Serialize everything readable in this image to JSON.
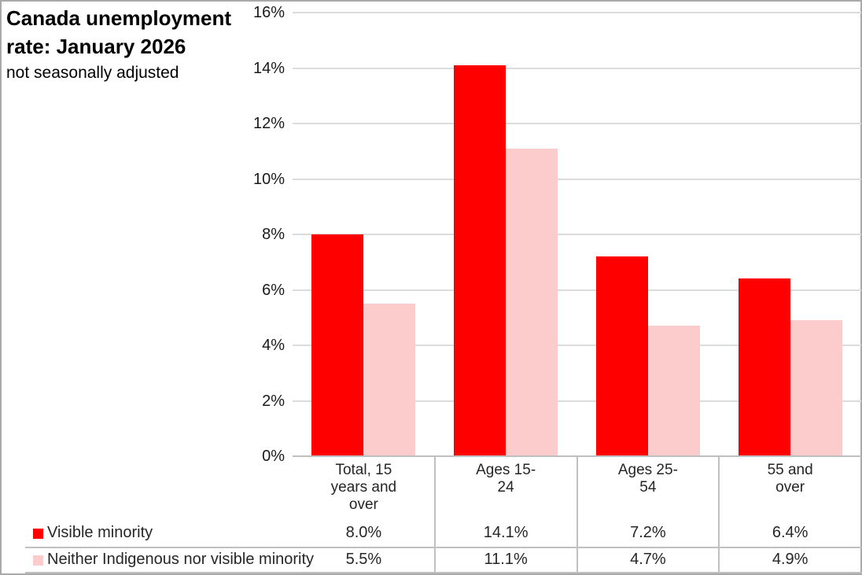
{
  "header": {
    "title": "Canada unemployment rate: January 2026",
    "subtitle": "not seasonally adjusted"
  },
  "chart_data": {
    "type": "bar",
    "title": "Canada unemployment rate: January 2026",
    "subtitle": "not seasonally adjusted",
    "categories": [
      "Total, 15 years and over",
      "Ages 15-24",
      "Ages 25-54",
      "55 and over"
    ],
    "category_labels_wrapped": [
      "Total, 15\nyears and\nover",
      "Ages 15-\n24",
      "Ages 25-\n54",
      "55 and\nover"
    ],
    "series": [
      {
        "name": "Visible minority",
        "color": "#ff0000",
        "values": [
          8.0,
          14.1,
          7.2,
          6.4
        ],
        "labels": [
          "8.0%",
          "14.1%",
          "7.2%",
          "6.4%"
        ]
      },
      {
        "name": "Neither Indigenous nor visible minority",
        "color": "#fccccc",
        "values": [
          5.5,
          11.1,
          4.7,
          4.9
        ],
        "labels": [
          "5.5%",
          "11.1%",
          "4.7%",
          "4.9%"
        ]
      }
    ],
    "ylim": [
      0,
      16
    ],
    "ytick_step": 2,
    "ytick_labels": [
      "0%",
      "2%",
      "4%",
      "6%",
      "8%",
      "10%",
      "12%",
      "14%",
      "16%"
    ],
    "grid": true,
    "legend_position": "data-table-left",
    "gridline_color": "#dcdcdc",
    "axis_color": "#bfbfbf",
    "table_line_color": "#c0c0c0"
  }
}
